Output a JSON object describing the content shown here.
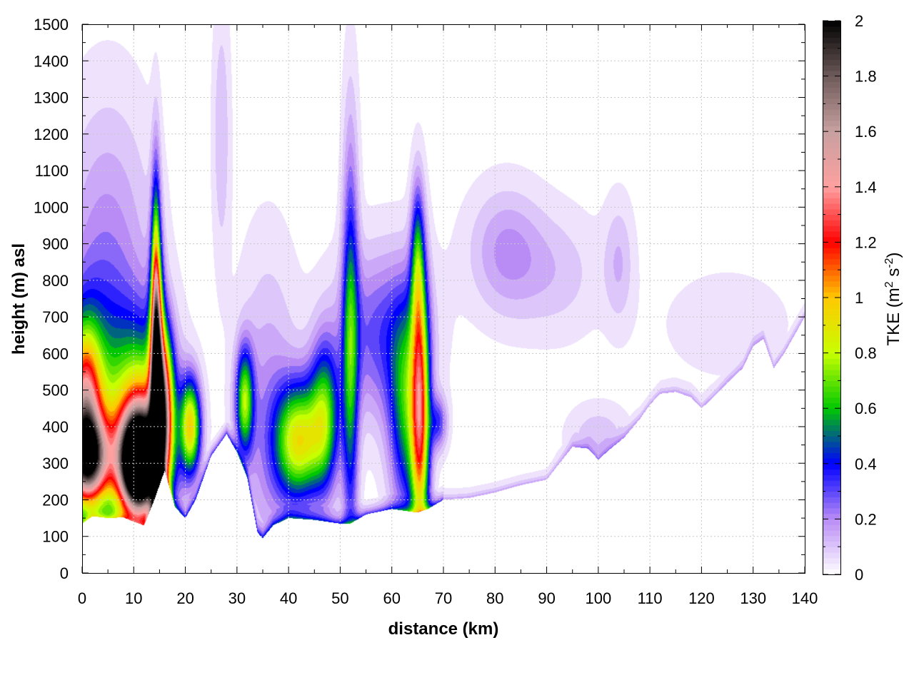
{
  "chart_data": {
    "type": "heatmap",
    "xlabel": "distance (km)",
    "ylabel": "height (m) asl",
    "colorbar_label_main": "TKE (m",
    "colorbar_label_sup1": "2",
    "colorbar_label_mid": " s",
    "colorbar_label_sup2": "-2",
    "colorbar_label_end": ")",
    "xlim": [
      0,
      140
    ],
    "ylim": [
      0,
      1500
    ],
    "clim": [
      0,
      2
    ],
    "x_ticks": [
      "0",
      "10",
      "20",
      "30",
      "40",
      "50",
      "60",
      "70",
      "80",
      "90",
      "100",
      "110",
      "120",
      "130",
      "140"
    ],
    "y_ticks": [
      "0",
      "100",
      "200",
      "300",
      "400",
      "500",
      "600",
      "700",
      "800",
      "900",
      "1000",
      "1100",
      "1200",
      "1300",
      "1400",
      "1500"
    ],
    "colorbar_ticks": [
      "0",
      "0.2",
      "0.4",
      "0.6",
      "0.8",
      "1",
      "1.2",
      "1.4",
      "1.6",
      "1.8",
      "2"
    ],
    "grid": true,
    "colormap": [
      {
        "v": 0.0,
        "color": "#ffffff"
      },
      {
        "v": 0.2,
        "color": "#b98cf5"
      },
      {
        "v": 0.4,
        "color": "#0000ff"
      },
      {
        "v": 0.6,
        "color": "#00c800"
      },
      {
        "v": 0.8,
        "color": "#c8ff00"
      },
      {
        "v": 1.0,
        "color": "#ffc800"
      },
      {
        "v": 1.2,
        "color": "#ff0000"
      },
      {
        "v": 1.4,
        "color": "#ffa0a0"
      },
      {
        "v": 1.6,
        "color": "#c8a0a0"
      },
      {
        "v": 1.8,
        "color": "#6e5a5a"
      },
      {
        "v": 2.0,
        "color": "#000000"
      }
    ],
    "terrain": [
      [
        0,
        135
      ],
      [
        2,
        155
      ],
      [
        5,
        150
      ],
      [
        8,
        152
      ],
      [
        10,
        140
      ],
      [
        12,
        130
      ],
      [
        14,
        200
      ],
      [
        16,
        280
      ],
      [
        18,
        180
      ],
      [
        20,
        150
      ],
      [
        22,
        200
      ],
      [
        25,
        320
      ],
      [
        28,
        380
      ],
      [
        30,
        330
      ],
      [
        32,
        260
      ],
      [
        34,
        110
      ],
      [
        35,
        95
      ],
      [
        37,
        130
      ],
      [
        40,
        150
      ],
      [
        45,
        145
      ],
      [
        50,
        135
      ],
      [
        52,
        135
      ],
      [
        55,
        160
      ],
      [
        60,
        175
      ],
      [
        65,
        165
      ],
      [
        67,
        175
      ],
      [
        70,
        200
      ],
      [
        75,
        205
      ],
      [
        80,
        220
      ],
      [
        85,
        240
      ],
      [
        90,
        255
      ],
      [
        95,
        345
      ],
      [
        98,
        340
      ],
      [
        100,
        310
      ],
      [
        102,
        335
      ],
      [
        105,
        370
      ],
      [
        108,
        420
      ],
      [
        110,
        460
      ],
      [
        112,
        490
      ],
      [
        115,
        495
      ],
      [
        118,
        480
      ],
      [
        120,
        450
      ],
      [
        123,
        490
      ],
      [
        125,
        520
      ],
      [
        128,
        560
      ],
      [
        130,
        620
      ],
      [
        132,
        640
      ],
      [
        134,
        560
      ],
      [
        136,
        600
      ],
      [
        138,
        650
      ],
      [
        140,
        700
      ]
    ],
    "blobs": [
      {
        "x": 1,
        "y": 310,
        "sx": 3,
        "sy": 85,
        "v": 1.45
      },
      {
        "x": 0.5,
        "y": 470,
        "sx": 2.2,
        "sy": 140,
        "v": 0.95
      },
      {
        "x": 3,
        "y": 430,
        "sx": 5,
        "sy": 230,
        "v": 0.5
      },
      {
        "x": 11,
        "y": 300,
        "sx": 2.6,
        "sy": 95,
        "v": 2.3
      },
      {
        "x": 12,
        "y": 380,
        "sx": 4,
        "sy": 190,
        "v": 0.95
      },
      {
        "x": 14.5,
        "y": 480,
        "sx": 0.9,
        "sy": 230,
        "v": 1.6
      },
      {
        "x": 14.3,
        "y": 720,
        "sx": 0.6,
        "sy": 250,
        "v": 0.8
      },
      {
        "x": 16,
        "y": 450,
        "sx": 1.2,
        "sy": 140,
        "v": 1.0
      },
      {
        "x": 21,
        "y": 400,
        "sx": 1.4,
        "sy": 90,
        "v": 0.9
      },
      {
        "x": 31.5,
        "y": 470,
        "sx": 1.2,
        "sy": 100,
        "v": 0.7
      },
      {
        "x": 42,
        "y": 360,
        "sx": 3.2,
        "sy": 110,
        "v": 0.85
      },
      {
        "x": 47,
        "y": 430,
        "sx": 2,
        "sy": 140,
        "v": 0.6
      },
      {
        "x": 52,
        "y": 600,
        "sx": 1.1,
        "sy": 380,
        "v": 0.55
      },
      {
        "x": 65.5,
        "y": 420,
        "sx": 1.2,
        "sy": 260,
        "v": 1.0
      },
      {
        "x": 63,
        "y": 440,
        "sx": 2.4,
        "sy": 200,
        "v": 0.55
      },
      {
        "x": 65,
        "y": 850,
        "sx": 0.9,
        "sy": 150,
        "v": 0.45
      },
      {
        "x": 69,
        "y": 410,
        "sx": 1.2,
        "sy": 50,
        "v": 0.3
      },
      {
        "x": 5,
        "y": 900,
        "sx": 6,
        "sy": 280,
        "v": 0.18
      },
      {
        "x": 27,
        "y": 1200,
        "sx": 1.2,
        "sy": 250,
        "v": 0.12
      },
      {
        "x": 36,
        "y": 420,
        "sx": 4,
        "sy": 300,
        "v": 0.18
      },
      {
        "x": 58,
        "y": 650,
        "sx": 6,
        "sy": 160,
        "v": 0.3
      },
      {
        "x": 82,
        "y": 880,
        "sx": 5,
        "sy": 120,
        "v": 0.18
      },
      {
        "x": 92,
        "y": 820,
        "sx": 6,
        "sy": 120,
        "v": 0.1
      },
      {
        "x": 104,
        "y": 850,
        "sx": 2,
        "sy": 120,
        "v": 0.12
      },
      {
        "x": 100,
        "y": 370,
        "sx": 4,
        "sy": 60,
        "v": 0.12
      },
      {
        "x": 125,
        "y": 680,
        "sx": 10,
        "sy": 120,
        "v": 0.05
      }
    ]
  }
}
